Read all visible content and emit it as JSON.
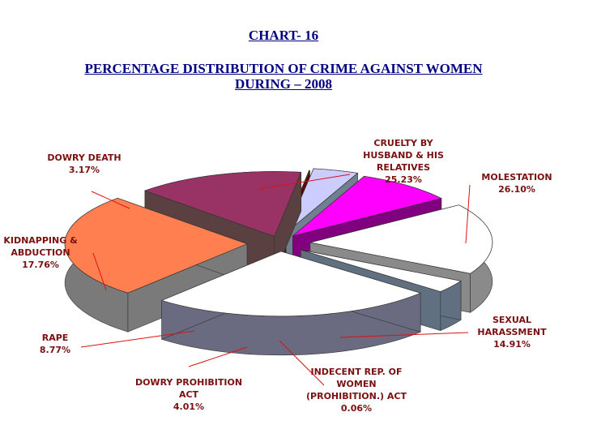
{
  "header": {
    "chart_number": "CHART- 16",
    "title_line1": "PERCENTAGE DISTRIBUTION OF CRIME AGAINST WOMEN",
    "title_line2": "DURING – 2008"
  },
  "chart_data": {
    "type": "pie",
    "title": "PERCENTAGE DISTRIBUTION OF CRIME AGAINST WOMEN DURING – 2008",
    "slices": [
      {
        "label": [
          "CRUELTY BY",
          "HUSBAND & HIS",
          "RELATIVES"
        ],
        "value": 25.23,
        "value_text": "25.23%",
        "color": "#ffffff"
      },
      {
        "label": [
          "MOLESTATION"
        ],
        "value": 26.1,
        "value_text": "26.10%",
        "color": "#ff7f50"
      },
      {
        "label": [
          "SEXUAL",
          "HARASSMENT"
        ],
        "value": 14.91,
        "value_text": "14.91%",
        "color": "#993366"
      },
      {
        "label": [
          "INDECENT REP. OF",
          "WOMEN",
          "(PROHIBITION.) ACT"
        ],
        "value": 0.06,
        "value_text": "0.06%",
        "color": "#800000"
      },
      {
        "label": [
          "DOWRY PROHIBITION",
          "ACT"
        ],
        "value": 4.01,
        "value_text": "4.01%",
        "color": "#ccccff"
      },
      {
        "label": [
          "RAPE"
        ],
        "value": 8.77,
        "value_text": "8.77%",
        "color": "#ff00ff"
      },
      {
        "label": [
          "KIDNAPPING &",
          "ABDUCTION"
        ],
        "value": 17.76,
        "value_text": "17.76%",
        "color": "#ffffff"
      },
      {
        "label": [
          "DOWRY DEATH"
        ],
        "value": 3.17,
        "value_text": "3.17%",
        "color": "#ffffff"
      }
    ]
  }
}
